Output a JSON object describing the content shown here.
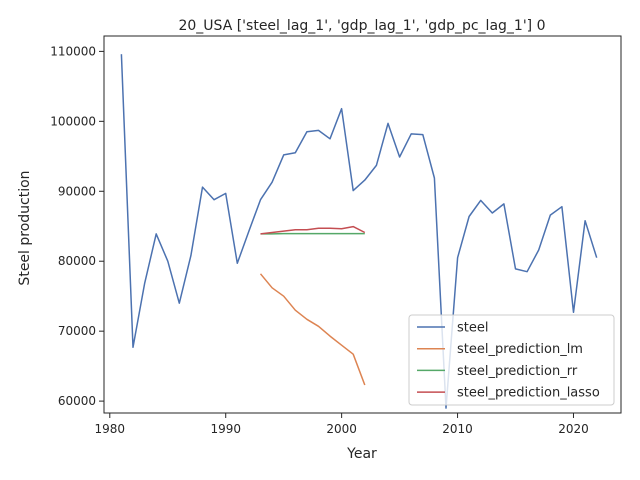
{
  "chart_data": {
    "type": "line",
    "title": "20_USA ['steel_lag_1', 'gdp_lag_1', 'gdp_pc_lag_1'] 0",
    "xlabel": "Year",
    "ylabel": "Steel production",
    "xlim": [
      1979.5,
      2024.1
    ],
    "ylim": [
      58300,
      112200
    ],
    "xticks": [
      1980,
      1990,
      2000,
      2010,
      2020
    ],
    "yticks": [
      60000,
      70000,
      80000,
      90000,
      100000,
      110000
    ],
    "grid": false,
    "legend_position": "bottom-right",
    "series": [
      {
        "name": "steel",
        "color": "#4c72b0",
        "x": [
          1981,
          1982,
          1983,
          1984,
          1985,
          1986,
          1987,
          1988,
          1989,
          1990,
          1991,
          1992,
          1993,
          1994,
          1995,
          1996,
          1997,
          1998,
          1999,
          2000,
          2001,
          2002,
          2003,
          2004,
          2005,
          2006,
          2007,
          2008,
          2009,
          2010,
          2011,
          2012,
          2013,
          2014,
          2015,
          2016,
          2017,
          2018,
          2019,
          2020,
          2021,
          2022
        ],
        "y": [
          109600,
          67700,
          76800,
          83900,
          80000,
          74000,
          80800,
          90600,
          88800,
          89700,
          79700,
          84300,
          88800,
          91300,
          95200,
          95500,
          98500,
          98700,
          97500,
          101800,
          90100,
          91600,
          93700,
          99700,
          94900,
          98200,
          98100,
          91900,
          59000,
          80500,
          86400,
          88700,
          86900,
          88200,
          78900,
          78500,
          81600,
          86600,
          87800,
          72700,
          85800,
          80500
        ]
      },
      {
        "name": "steel_prediction_lm",
        "color": "#dd8452",
        "x": [
          1993,
          1994,
          1995,
          1996,
          1997,
          1998,
          1999,
          2000,
          2001,
          2002
        ],
        "y": [
          78200,
          76200,
          75000,
          73000,
          71700,
          70700,
          69300,
          68000,
          66700,
          62300
        ]
      },
      {
        "name": "steel_prediction_rr",
        "color": "#55a868",
        "x": [
          1993,
          1994,
          1995,
          1996,
          1997,
          1998,
          1999,
          2000,
          2001,
          2002
        ],
        "y": [
          83900,
          83900,
          83950,
          83950,
          83950,
          83950,
          83950,
          83950,
          83950,
          83950
        ]
      },
      {
        "name": "steel_prediction_lasso",
        "color": "#c44e52",
        "x": [
          1993,
          1994,
          1995,
          1996,
          1997,
          1998,
          1999,
          2000,
          2001,
          2002
        ],
        "y": [
          83900,
          84100,
          84300,
          84500,
          84500,
          84700,
          84700,
          84650,
          84950,
          84100
        ]
      }
    ]
  }
}
